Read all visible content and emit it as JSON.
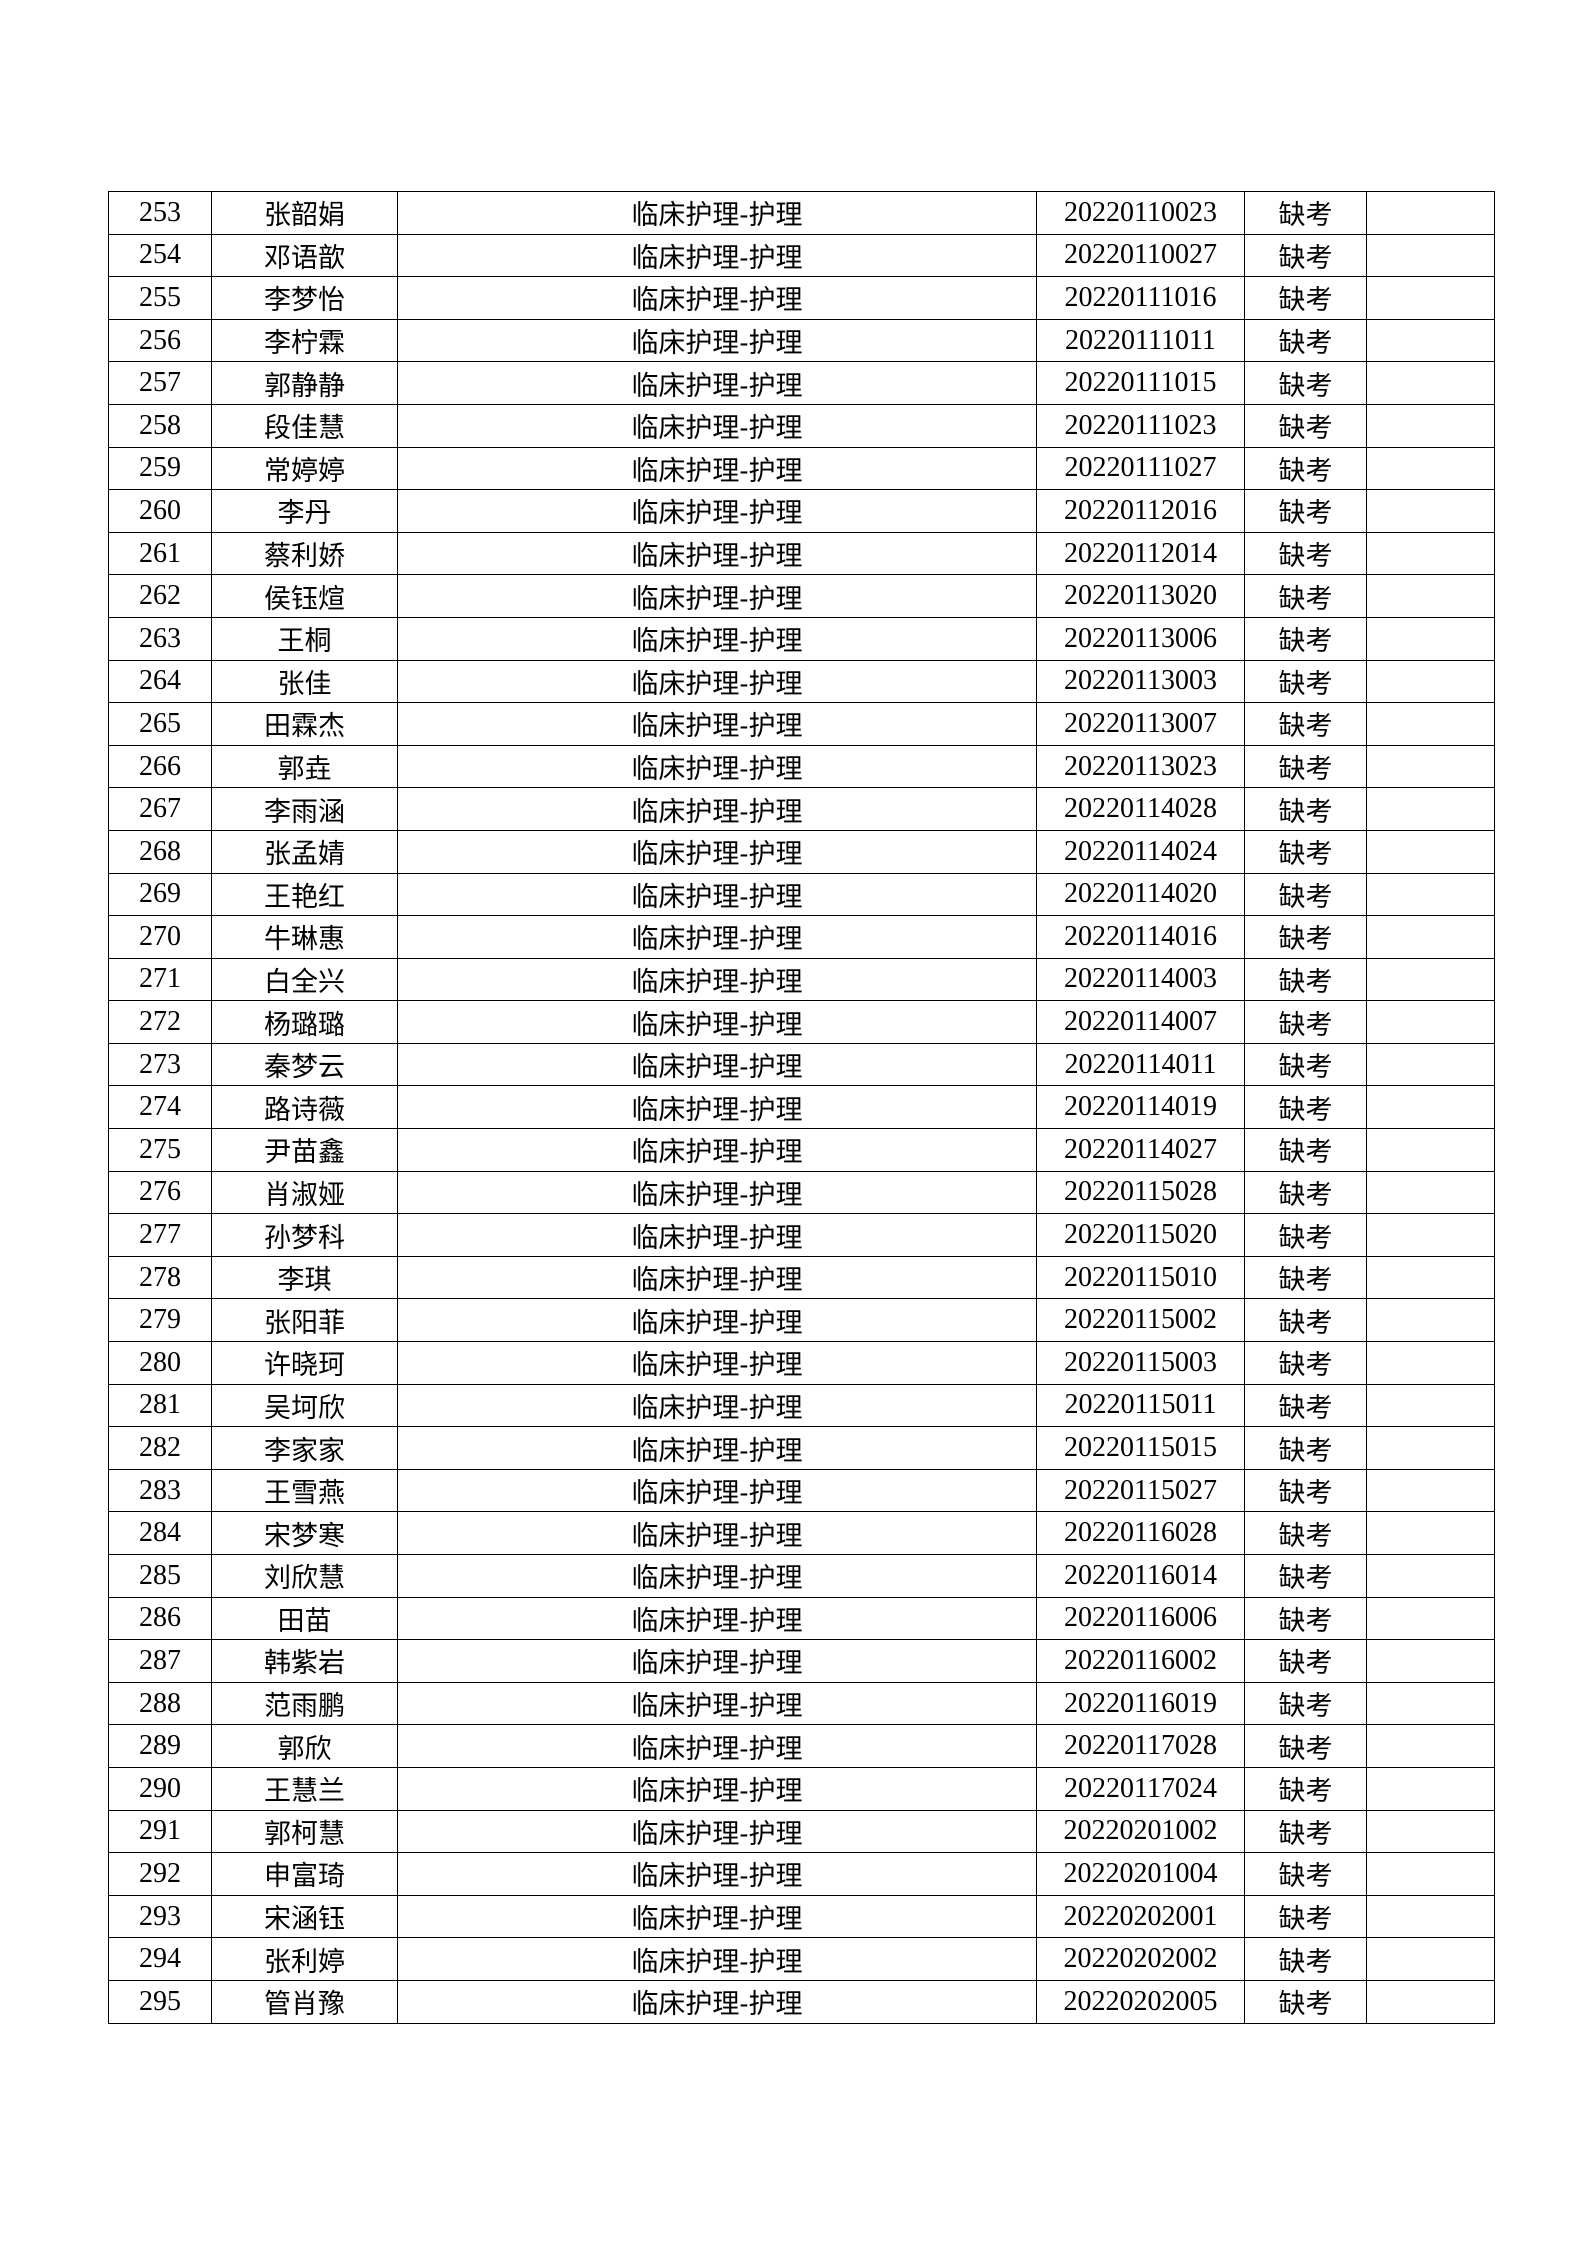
{
  "table": {
    "rows": [
      {
        "no": "253",
        "name": "张韶娟",
        "major": "临床护理-护理",
        "id": "20220110023",
        "status": "缺考",
        "note": ""
      },
      {
        "no": "254",
        "name": "邓语歆",
        "major": "临床护理-护理",
        "id": "20220110027",
        "status": "缺考",
        "note": ""
      },
      {
        "no": "255",
        "name": "李梦怡",
        "major": "临床护理-护理",
        "id": "20220111016",
        "status": "缺考",
        "note": ""
      },
      {
        "no": "256",
        "name": "李柠霖",
        "major": "临床护理-护理",
        "id": "20220111011",
        "status": "缺考",
        "note": ""
      },
      {
        "no": "257",
        "name": "郭静静",
        "major": "临床护理-护理",
        "id": "20220111015",
        "status": "缺考",
        "note": ""
      },
      {
        "no": "258",
        "name": "段佳慧",
        "major": "临床护理-护理",
        "id": "20220111023",
        "status": "缺考",
        "note": ""
      },
      {
        "no": "259",
        "name": "常婷婷",
        "major": "临床护理-护理",
        "id": "20220111027",
        "status": "缺考",
        "note": ""
      },
      {
        "no": "260",
        "name": "李丹",
        "major": "临床护理-护理",
        "id": "20220112016",
        "status": "缺考",
        "note": ""
      },
      {
        "no": "261",
        "name": "蔡利娇",
        "major": "临床护理-护理",
        "id": "20220112014",
        "status": "缺考",
        "note": ""
      },
      {
        "no": "262",
        "name": "侯钰煊",
        "major": "临床护理-护理",
        "id": "20220113020",
        "status": "缺考",
        "note": ""
      },
      {
        "no": "263",
        "name": "王桐",
        "major": "临床护理-护理",
        "id": "20220113006",
        "status": "缺考",
        "note": ""
      },
      {
        "no": "264",
        "name": "张佳",
        "major": "临床护理-护理",
        "id": "20220113003",
        "status": "缺考",
        "note": ""
      },
      {
        "no": "265",
        "name": "田霖杰",
        "major": "临床护理-护理",
        "id": "20220113007",
        "status": "缺考",
        "note": ""
      },
      {
        "no": "266",
        "name": "郭垚",
        "major": "临床护理-护理",
        "id": "20220113023",
        "status": "缺考",
        "note": ""
      },
      {
        "no": "267",
        "name": "李雨涵",
        "major": "临床护理-护理",
        "id": "20220114028",
        "status": "缺考",
        "note": ""
      },
      {
        "no": "268",
        "name": "张孟婧",
        "major": "临床护理-护理",
        "id": "20220114024",
        "status": "缺考",
        "note": ""
      },
      {
        "no": "269",
        "name": "王艳红",
        "major": "临床护理-护理",
        "id": "20220114020",
        "status": "缺考",
        "note": ""
      },
      {
        "no": "270",
        "name": "牛琳惠",
        "major": "临床护理-护理",
        "id": "20220114016",
        "status": "缺考",
        "note": ""
      },
      {
        "no": "271",
        "name": "白全兴",
        "major": "临床护理-护理",
        "id": "20220114003",
        "status": "缺考",
        "note": ""
      },
      {
        "no": "272",
        "name": "杨璐璐",
        "major": "临床护理-护理",
        "id": "20220114007",
        "status": "缺考",
        "note": ""
      },
      {
        "no": "273",
        "name": "秦梦云",
        "major": "临床护理-护理",
        "id": "20220114011",
        "status": "缺考",
        "note": ""
      },
      {
        "no": "274",
        "name": "路诗薇",
        "major": "临床护理-护理",
        "id": "20220114019",
        "status": "缺考",
        "note": ""
      },
      {
        "no": "275",
        "name": "尹苗鑫",
        "major": "临床护理-护理",
        "id": "20220114027",
        "status": "缺考",
        "note": ""
      },
      {
        "no": "276",
        "name": "肖淑娅",
        "major": "临床护理-护理",
        "id": "20220115028",
        "status": "缺考",
        "note": ""
      },
      {
        "no": "277",
        "name": "孙梦科",
        "major": "临床护理-护理",
        "id": "20220115020",
        "status": "缺考",
        "note": ""
      },
      {
        "no": "278",
        "name": "李琪",
        "major": "临床护理-护理",
        "id": "20220115010",
        "status": "缺考",
        "note": ""
      },
      {
        "no": "279",
        "name": "张阳菲",
        "major": "临床护理-护理",
        "id": "20220115002",
        "status": "缺考",
        "note": ""
      },
      {
        "no": "280",
        "name": "许晓珂",
        "major": "临床护理-护理",
        "id": "20220115003",
        "status": "缺考",
        "note": ""
      },
      {
        "no": "281",
        "name": "吴坷欣",
        "major": "临床护理-护理",
        "id": "20220115011",
        "status": "缺考",
        "note": ""
      },
      {
        "no": "282",
        "name": "李家家",
        "major": "临床护理-护理",
        "id": "20220115015",
        "status": "缺考",
        "note": ""
      },
      {
        "no": "283",
        "name": "王雪燕",
        "major": "临床护理-护理",
        "id": "20220115027",
        "status": "缺考",
        "note": ""
      },
      {
        "no": "284",
        "name": "宋梦寒",
        "major": "临床护理-护理",
        "id": "20220116028",
        "status": "缺考",
        "note": ""
      },
      {
        "no": "285",
        "name": "刘欣慧",
        "major": "临床护理-护理",
        "id": "20220116014",
        "status": "缺考",
        "note": ""
      },
      {
        "no": "286",
        "name": "田苗",
        "major": "临床护理-护理",
        "id": "20220116006",
        "status": "缺考",
        "note": ""
      },
      {
        "no": "287",
        "name": "韩紫岩",
        "major": "临床护理-护理",
        "id": "20220116002",
        "status": "缺考",
        "note": ""
      },
      {
        "no": "288",
        "name": "范雨鹏",
        "major": "临床护理-护理",
        "id": "20220116019",
        "status": "缺考",
        "note": ""
      },
      {
        "no": "289",
        "name": "郭欣",
        "major": "临床护理-护理",
        "id": "20220117028",
        "status": "缺考",
        "note": ""
      },
      {
        "no": "290",
        "name": "王慧兰",
        "major": "临床护理-护理",
        "id": "20220117024",
        "status": "缺考",
        "note": ""
      },
      {
        "no": "291",
        "name": "郭柯慧",
        "major": "临床护理-护理",
        "id": "20220201002",
        "status": "缺考",
        "note": ""
      },
      {
        "no": "292",
        "name": "申富琦",
        "major": "临床护理-护理",
        "id": "20220201004",
        "status": "缺考",
        "note": ""
      },
      {
        "no": "293",
        "name": "宋涵钰",
        "major": "临床护理-护理",
        "id": "20220202001",
        "status": "缺考",
        "note": ""
      },
      {
        "no": "294",
        "name": "张利婷",
        "major": "临床护理-护理",
        "id": "20220202002",
        "status": "缺考",
        "note": ""
      },
      {
        "no": "295",
        "name": "管肖豫",
        "major": "临床护理-护理",
        "id": "20220202005",
        "status": "缺考",
        "note": ""
      }
    ]
  }
}
